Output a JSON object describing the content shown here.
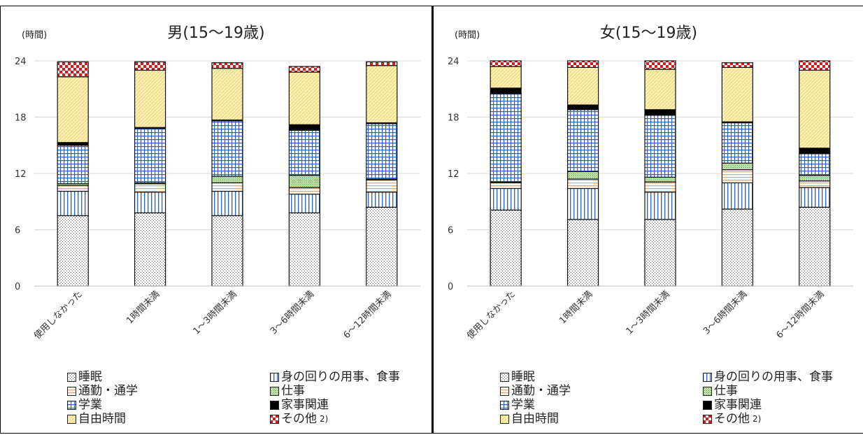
{
  "chart_data": [
    {
      "type": "bar",
      "stacked": true,
      "title": "男(15～19歳)",
      "ylabel": "(時間)",
      "ylim": [
        0,
        24
      ],
      "yticks": [
        0,
        6,
        12,
        18,
        24
      ],
      "categories": [
        "使用しなかった",
        "1時間未満",
        "1～3時間未満",
        "3～6時間未満",
        "6～12時間未満"
      ],
      "series": [
        {
          "name": "睡眠",
          "values": [
            7.5,
            7.8,
            7.5,
            7.8,
            8.4
          ]
        },
        {
          "name": "身の回りの用事、食事",
          "values": [
            2.6,
            2.2,
            2.6,
            2.0,
            1.6
          ]
        },
        {
          "name": "通勤・通学",
          "values": [
            0.6,
            0.9,
            0.9,
            0.7,
            1.3
          ]
        },
        {
          "name": "仕事",
          "values": [
            0.2,
            0.1,
            0.7,
            1.3,
            0.1
          ]
        },
        {
          "name": "学業",
          "values": [
            4.1,
            5.8,
            5.9,
            4.8,
            5.9
          ]
        },
        {
          "name": "家事関連",
          "values": [
            0.3,
            0.1,
            0.1,
            0.6,
            0.1
          ]
        },
        {
          "name": "自由時間",
          "values": [
            7.0,
            6.1,
            5.5,
            5.6,
            6.1
          ]
        },
        {
          "name": "その他",
          "values": [
            1.6,
            0.9,
            0.6,
            0.6,
            0.4
          ]
        }
      ]
    },
    {
      "type": "bar",
      "stacked": true,
      "title": "女(15～19歳)",
      "ylabel": "(時間)",
      "ylim": [
        0,
        24
      ],
      "yticks": [
        0,
        6,
        12,
        18,
        24
      ],
      "categories": [
        "使用しなかった",
        "1時間未満",
        "1～3時間未満",
        "3～6時間未満",
        "6～12時間未満"
      ],
      "series": [
        {
          "name": "睡眠",
          "values": [
            8.1,
            7.1,
            7.1,
            8.2,
            8.4
          ]
        },
        {
          "name": "身の回りの用事、食事",
          "values": [
            2.3,
            3.3,
            2.9,
            2.8,
            2.1
          ]
        },
        {
          "name": "通勤・通学",
          "values": [
            0.6,
            1.0,
            1.1,
            1.4,
            0.7
          ]
        },
        {
          "name": "仕事",
          "values": [
            0.1,
            0.8,
            0.5,
            0.7,
            0.6
          ]
        },
        {
          "name": "学業",
          "values": [
            9.4,
            6.6,
            6.6,
            4.3,
            2.3
          ]
        },
        {
          "name": "家事関連",
          "values": [
            0.6,
            0.5,
            0.6,
            0.1,
            0.6
          ]
        },
        {
          "name": "自由時間",
          "values": [
            2.3,
            4.0,
            4.3,
            5.8,
            8.3
          ]
        },
        {
          "name": "その他",
          "values": [
            0.6,
            0.7,
            0.9,
            0.5,
            1.0
          ]
        }
      ]
    }
  ],
  "legend": {
    "items": [
      {
        "label": "睡眠",
        "pattern": "pat-sleep"
      },
      {
        "label": "身の回りの用事、食事",
        "pattern": "pat-personal"
      },
      {
        "label": "通勤・通学",
        "pattern": "pat-commute"
      },
      {
        "label": "仕事",
        "pattern": "pat-work"
      },
      {
        "label": "学業",
        "pattern": "pat-study"
      },
      {
        "label": "家事関連",
        "pattern": "pat-house"
      },
      {
        "label": "自由時間",
        "pattern": "pat-free"
      },
      {
        "label": "その他",
        "pattern": "pat-other",
        "note": "2)"
      }
    ]
  },
  "colors": {
    "sleep_bg": "#ffffff",
    "personal": "#2e6db4",
    "commute": "#f2a56b",
    "work": "#9bcf7b",
    "study": "#2e5fc7",
    "house": "#000000",
    "free_bg": "#fbefb4",
    "other": "#d8181f",
    "grid": "#d9d9d9"
  }
}
